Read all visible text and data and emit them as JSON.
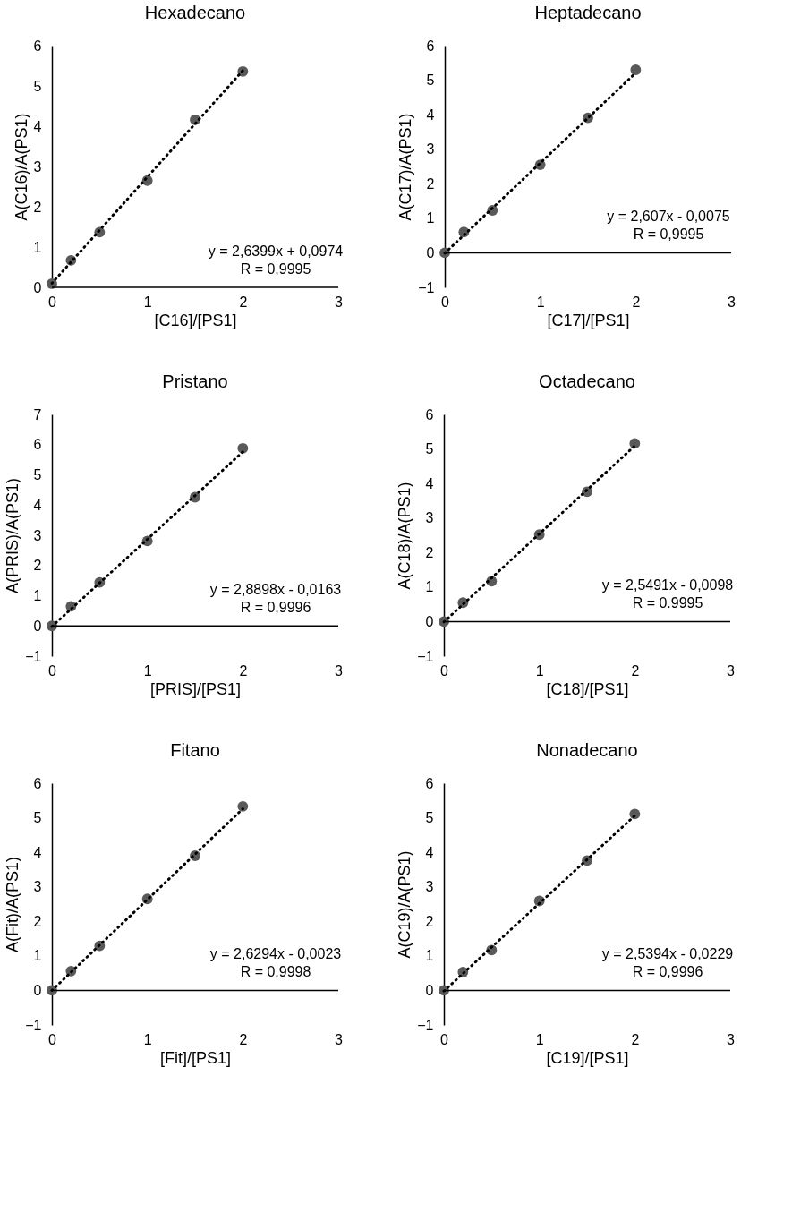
{
  "chart_data": [
    {
      "type": "scatter",
      "title": "Hexadecano",
      "xlabel": "[C16]/[PS1]",
      "ylabel": "A(C16)/A(PS1)",
      "xlim": [
        0,
        3
      ],
      "xticks": [
        0,
        1,
        2,
        3
      ],
      "ylim": [
        0,
        6
      ],
      "yticks": [
        0,
        1,
        2,
        3,
        4,
        5,
        6
      ],
      "marker": "circle",
      "annotations": [
        "y = 2,6399x + 0,0974",
        "R = 0,9995"
      ],
      "series": [
        {
          "type": "scatter",
          "color": "#595959",
          "x": [
            0,
            0.2,
            0.5,
            1,
            1.5,
            2
          ],
          "values": [
            0.09,
            0.67,
            1.37,
            2.65,
            4.16,
            5.36
          ]
        },
        {
          "type": "line",
          "color": "#000000",
          "line_style": "dotted",
          "marker": "none",
          "x": [
            0,
            2
          ],
          "values": [
            0.1,
            5.38
          ]
        }
      ]
    },
    {
      "type": "scatter",
      "title": "Heptadecano",
      "xlabel": "[C17]/[PS1]",
      "ylabel": "A(C17)/A(PS1)",
      "xlim": [
        0,
        3
      ],
      "xticks": [
        0,
        1,
        2,
        3
      ],
      "ylim": [
        -1,
        6
      ],
      "yticks": [
        -1,
        0,
        1,
        2,
        3,
        4,
        5,
        6
      ],
      "marker": "circle",
      "annotations": [
        "y = 2,607x - 0,0075",
        "R = 0,9995"
      ],
      "series": [
        {
          "type": "scatter",
          "color": "#595959",
          "x": [
            0,
            0.2,
            0.5,
            1,
            1.5,
            2
          ],
          "values": [
            0.0,
            0.6,
            1.23,
            2.55,
            3.91,
            5.3
          ]
        },
        {
          "type": "line",
          "color": "#000000",
          "line_style": "dotted",
          "x": [
            0,
            2
          ],
          "values": [
            -0.01,
            5.21
          ],
          "marker": "none"
        }
      ]
    },
    {
      "type": "scatter",
      "title": "Pristano",
      "xlabel": "[PRIS]/[PS1]",
      "ylabel": "A(PRIS)/A(PS1)",
      "xlim": [
        0,
        3
      ],
      "xticks": [
        0,
        1,
        2,
        3
      ],
      "ylim": [
        -1,
        7
      ],
      "yticks": [
        -1,
        0,
        1,
        2,
        3,
        4,
        5,
        6,
        7
      ],
      "marker": "circle",
      "annotations": [
        "y = 2,8898x - 0,0163",
        "R = 0,9996"
      ],
      "series": [
        {
          "type": "scatter",
          "color": "#595959",
          "x": [
            0,
            0.2,
            0.5,
            1,
            1.5,
            2
          ],
          "values": [
            0.0,
            0.65,
            1.44,
            2.81,
            4.26,
            5.88
          ]
        },
        {
          "type": "line",
          "color": "#000000",
          "line_style": "dotted",
          "x": [
            0,
            2
          ],
          "values": [
            -0.02,
            5.76
          ],
          "marker": "none"
        }
      ]
    },
    {
      "type": "scatter",
      "title": "Octadecano",
      "xlabel": "[C18]/[PS1]",
      "ylabel": "A(C18)/A(PS1)",
      "xlim": [
        0,
        3
      ],
      "xticks": [
        0,
        1,
        2,
        3
      ],
      "ylim": [
        -1,
        6
      ],
      "yticks": [
        -1,
        0,
        1,
        2,
        3,
        4,
        5,
        6
      ],
      "marker": "circle",
      "annotations": [
        "y = 2,5491x - 0,0098",
        "R = 0.9995"
      ],
      "series": [
        {
          "type": "scatter",
          "color": "#595959",
          "x": [
            0,
            0.2,
            0.5,
            1,
            1.5,
            2
          ],
          "values": [
            0.0,
            0.55,
            1.17,
            2.52,
            3.76,
            5.16
          ]
        },
        {
          "type": "line",
          "color": "#000000",
          "line_style": "dotted",
          "x": [
            0,
            2
          ],
          "values": [
            -0.01,
            5.09
          ],
          "marker": "none"
        }
      ]
    },
    {
      "type": "scatter",
      "title": "Fitano",
      "xlabel": "[Fit]/[PS1]",
      "ylabel": "A(Fit)/A(PS1)",
      "xlim": [
        0,
        3
      ],
      "xticks": [
        0,
        1,
        2,
        3
      ],
      "ylim": [
        -1,
        6
      ],
      "yticks": [
        -1,
        0,
        1,
        2,
        3,
        4,
        5,
        6
      ],
      "marker": "circle",
      "annotations": [
        "y = 2,6294x - 0,0023",
        "R = 0,9998"
      ],
      "series": [
        {
          "type": "scatter",
          "color": "#595959",
          "x": [
            0,
            0.2,
            0.5,
            1,
            1.5,
            2
          ],
          "values": [
            0.0,
            0.56,
            1.29,
            2.65,
            3.9,
            5.33
          ]
        },
        {
          "type": "line",
          "color": "#000000",
          "line_style": "dotted",
          "x": [
            0,
            2
          ],
          "values": [
            0.0,
            5.26
          ],
          "marker": "none"
        }
      ]
    },
    {
      "type": "scatter",
      "title": "Nonadecano",
      "xlabel": "[C19]/[PS1]",
      "ylabel": "A(C19)/A(PS1)",
      "xlim": [
        0,
        3
      ],
      "xticks": [
        0,
        1,
        2,
        3
      ],
      "ylim": [
        -1,
        6
      ],
      "yticks": [
        -1,
        0,
        1,
        2,
        3,
        4,
        5,
        6
      ],
      "marker": "circle",
      "annotations": [
        "y = 2,5394x - 0,0229",
        "R = 0,9996"
      ],
      "series": [
        {
          "type": "scatter",
          "color": "#595959",
          "x": [
            0,
            0.2,
            0.5,
            1,
            1.5,
            2
          ],
          "values": [
            0.0,
            0.53,
            1.17,
            2.59,
            3.76,
            5.11
          ]
        },
        {
          "type": "line",
          "color": "#000000",
          "line_style": "dotted",
          "x": [
            0,
            2
          ],
          "values": [
            -0.02,
            5.06
          ],
          "marker": "none"
        }
      ]
    }
  ]
}
